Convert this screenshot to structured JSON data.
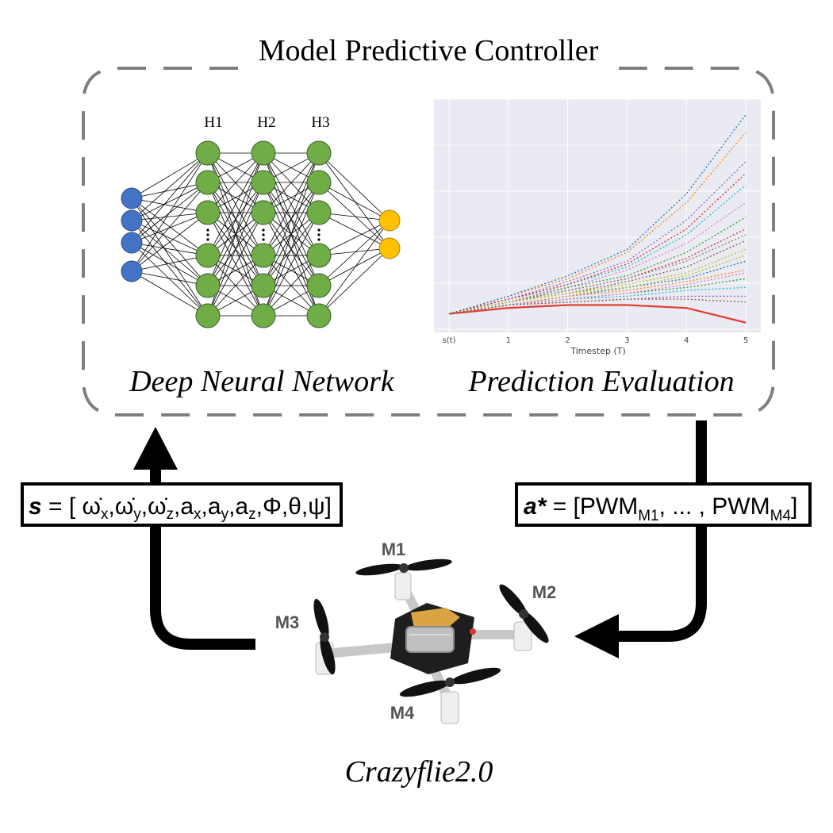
{
  "controller": {
    "title": "Model Predictive Controller"
  },
  "network": {
    "caption": "Deep Neural Network",
    "layers": [
      "H1",
      "H2",
      "H3"
    ],
    "colors": {
      "input": "#4472c4",
      "hidden": "#70ad47",
      "output": "#ffc000"
    }
  },
  "prediction": {
    "caption": "Prediction Evaluation",
    "chart_data": {
      "type": "line",
      "x": [
        "s(t)",
        "1",
        "2",
        "3",
        "4",
        "5"
      ],
      "xlabel": "Timestep (T)",
      "ylabel": "",
      "grid": true,
      "series": [
        {
          "values": [
            0.0,
            0.02,
            0.03,
            0.03,
            0.02,
            -0.03
          ],
          "style": "solid",
          "color": "#e03c31"
        },
        {
          "values": [
            0.0,
            0.06,
            0.12,
            0.21,
            0.38,
            0.62
          ],
          "style": "dotted",
          "color": "#ff7f0e"
        },
        {
          "values": [
            0.0,
            0.06,
            0.13,
            0.22,
            0.41,
            0.68
          ],
          "style": "dotted",
          "color": "#1f77b4"
        },
        {
          "values": [
            0.0,
            0.05,
            0.11,
            0.18,
            0.32,
            0.52
          ],
          "style": "dotted",
          "color": "#9467bd"
        },
        {
          "values": [
            0.0,
            0.05,
            0.1,
            0.16,
            0.27,
            0.44
          ],
          "style": "dotted",
          "color": "#17becf"
        },
        {
          "values": [
            0.0,
            0.05,
            0.09,
            0.15,
            0.24,
            0.38
          ],
          "style": "dotted",
          "color": "#e377c2"
        },
        {
          "values": [
            0.0,
            0.04,
            0.09,
            0.13,
            0.21,
            0.33
          ],
          "style": "dotted",
          "color": "#2ca02c"
        },
        {
          "values": [
            0.0,
            0.04,
            0.08,
            0.12,
            0.19,
            0.29
          ],
          "style": "dotted",
          "color": "#d62728"
        },
        {
          "values": [
            0.0,
            0.04,
            0.07,
            0.11,
            0.16,
            0.25
          ],
          "style": "dotted",
          "color": "#8c564b"
        },
        {
          "values": [
            0.0,
            0.04,
            0.07,
            0.1,
            0.14,
            0.22
          ],
          "style": "dotted",
          "color": "#bcbd22"
        },
        {
          "values": [
            0.0,
            0.03,
            0.06,
            0.09,
            0.12,
            0.18
          ],
          "style": "dotted",
          "color": "#1f77b4"
        },
        {
          "values": [
            0.0,
            0.03,
            0.06,
            0.08,
            0.11,
            0.15
          ],
          "style": "dotted",
          "color": "#ff7f0e"
        },
        {
          "values": [
            0.0,
            0.03,
            0.05,
            0.07,
            0.09,
            0.12
          ],
          "style": "dotted",
          "color": "#2ca02c"
        },
        {
          "values": [
            0.0,
            0.03,
            0.05,
            0.06,
            0.08,
            0.09
          ],
          "style": "dotted",
          "color": "#17becf"
        },
        {
          "values": [
            0.0,
            0.03,
            0.04,
            0.05,
            0.06,
            0.06
          ],
          "style": "dotted",
          "color": "#9467bd"
        },
        {
          "values": [
            0.0,
            0.03,
            0.05,
            0.07,
            0.1,
            0.14
          ],
          "style": "dotted",
          "color": "#e377c2"
        },
        {
          "values": [
            0.0,
            0.04,
            0.08,
            0.12,
            0.18,
            0.27
          ],
          "style": "dotted",
          "color": "#7f7f7f"
        },
        {
          "values": [
            0.0,
            0.05,
            0.1,
            0.17,
            0.29,
            0.48
          ],
          "style": "dotted",
          "color": "#d62728"
        },
        {
          "values": [
            0.0,
            0.04,
            0.07,
            0.09,
            0.13,
            0.2
          ],
          "style": "dotted",
          "color": "#bcbd22"
        },
        {
          "values": [
            0.0,
            0.03,
            0.04,
            0.05,
            0.05,
            0.04
          ],
          "style": "dotted",
          "color": "#8c564b"
        }
      ],
      "ylim": [
        -0.05,
        0.72
      ]
    }
  },
  "state_box": {
    "bold": "s",
    "text": " = [ ω̇",
    "sub1": "x",
    "t2": ",ω̇",
    "sub2": "y",
    "t3": ",ω̇",
    "sub3": "z",
    "t4": ",a",
    "sub4": "x",
    "t5": ",a",
    "sub5": "y",
    "t6": ",a",
    "sub6": "z",
    "t7": ",Φ,θ,ψ]"
  },
  "action_box": {
    "bold": "a*",
    "text": " = [PWM",
    "sub1": "M1",
    "t2": ", ... , PWM",
    "sub2": "M4",
    "t3": "]"
  },
  "drone": {
    "caption": "Crazyflie2.0",
    "motors": [
      "M1",
      "M2",
      "M3",
      "M4"
    ]
  }
}
